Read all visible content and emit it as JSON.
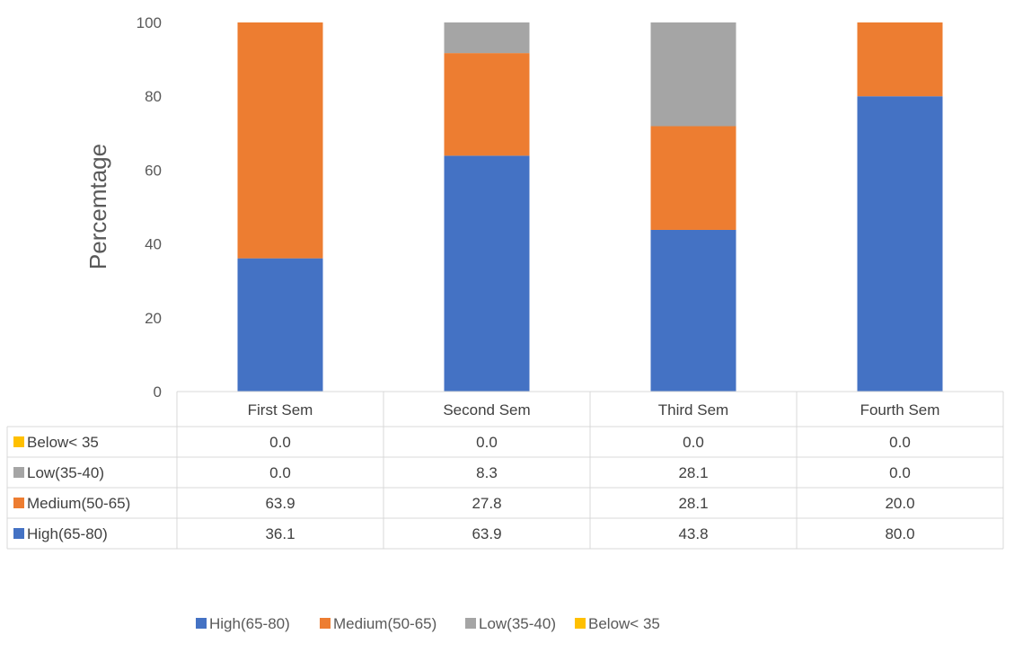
{
  "chart_data": {
    "type": "bar",
    "stacked": true,
    "categories": [
      "First Sem",
      "Second Sem",
      "Third Sem",
      "Fourth Sem"
    ],
    "series": [
      {
        "name": "High(65-80)",
        "color": "#4472C4",
        "values": [
          36.1,
          63.9,
          43.8,
          80.0
        ]
      },
      {
        "name": "Medium(50-65)",
        "color": "#ED7D31",
        "values": [
          63.9,
          27.8,
          28.1,
          20.0
        ]
      },
      {
        "name": "Low(35-40)",
        "color": "#A5A5A5",
        "values": [
          0.0,
          8.3,
          28.1,
          0.0
        ]
      },
      {
        "name": "Below< 35",
        "color": "#FFC000",
        "values": [
          0.0,
          0.0,
          0.0,
          0.0
        ]
      }
    ],
    "table_row_order": [
      "Below< 35",
      "Low(35-40)",
      "Medium(50-65)",
      "High(65-80)"
    ],
    "ylabel": "Percemtage",
    "xlabel": "",
    "ylim": [
      0,
      100
    ],
    "yticks": [
      0,
      20,
      40,
      60,
      80,
      100
    ],
    "grid": false,
    "data_table": true,
    "legend_position": "bottom"
  }
}
